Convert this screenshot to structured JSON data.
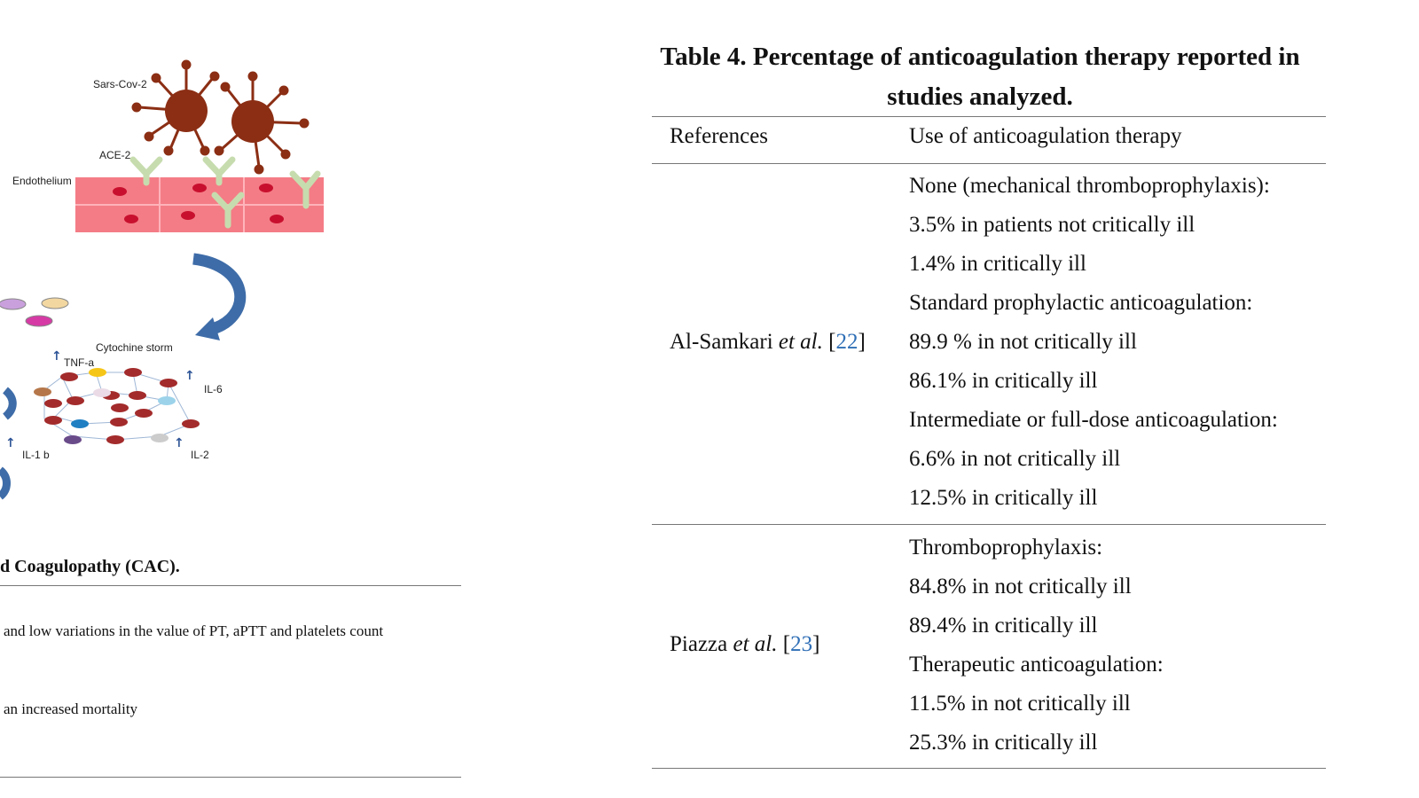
{
  "figure": {
    "labels": {
      "virus": "Sars-Cov-2",
      "receptor": "ACE-2",
      "endothelium": "Endothelium",
      "storm": "Cytochine storm",
      "tnf": "TNF-a",
      "il6": "IL-6",
      "il1b": "IL-1 b",
      "il2": "IL-2"
    },
    "colors": {
      "virus": "#8b2e14",
      "endothelium": "#f47c86",
      "receptor": "#c7dcae",
      "arrow": "#3e6ca8",
      "cell": "#a32b2b"
    }
  },
  "left_table": {
    "title": "d Coagulopathy (CAC).",
    "rows": [
      "and low variations in the value of PT, aPTT and platelets count",
      "an increased mortality"
    ]
  },
  "table4": {
    "title": "Table 4. Percentage of anticoagulation therapy reported in studies analyzed.",
    "headers": [
      "References",
      "Use of anticoagulation therapy"
    ],
    "rows": [
      {
        "ref_author": "Al-Samkari",
        "ref_etal": "et al.",
        "ref_open": "[",
        "ref_num": "22",
        "ref_close": "]",
        "lines": [
          "None (mechanical thromboprophylaxis):",
          "3.5% in patients not critically ill",
          "1.4% in critically ill",
          "Standard prophylactic anticoagulation:",
          "89.9 % in not critically ill",
          "86.1% in critically ill",
          "Intermediate or full-dose anticoagulation:",
          "6.6% in not critically ill",
          "12.5% in critically ill"
        ]
      },
      {
        "ref_author": "Piazza",
        "ref_etal": "et al.",
        "ref_open": "[",
        "ref_num": "23",
        "ref_close": "]",
        "lines": [
          "Thromboprophylaxis:",
          "84.8% in not critically ill",
          "89.4% in critically ill",
          "Therapeutic anticoagulation:",
          "11.5% in not critically ill",
          "25.3% in critically ill"
        ]
      }
    ]
  }
}
